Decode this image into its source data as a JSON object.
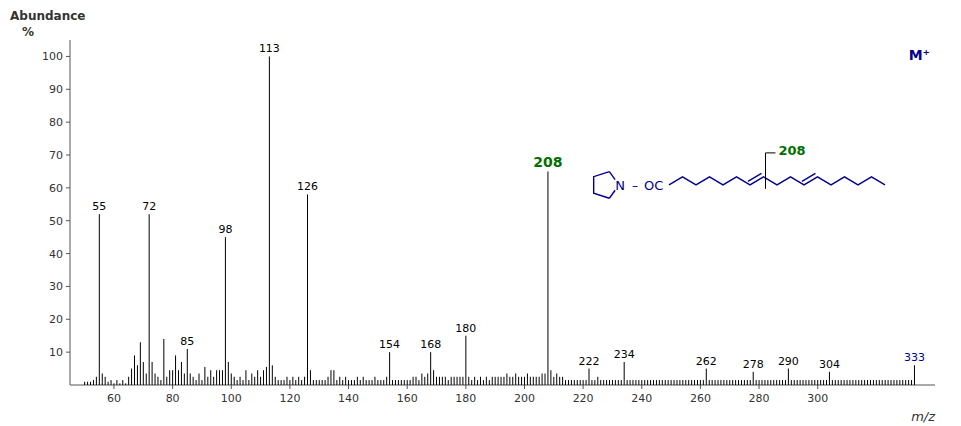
{
  "chart_data": {
    "type": "stem",
    "x_label": "m/z",
    "y_label": "Abundance",
    "xlim": [
      45,
      340
    ],
    "ylim": [
      0,
      105
    ],
    "xticks": [
      60,
      80,
      100,
      120,
      140,
      160,
      180,
      200,
      220,
      240,
      260,
      280,
      300
    ],
    "yticks": [
      10,
      20,
      30,
      40,
      50,
      60,
      70,
      80,
      90,
      100
    ],
    "grid": false,
    "color": "#000000",
    "x": [
      50,
      51,
      52,
      53,
      54,
      55,
      56,
      57,
      58,
      59,
      60,
      61,
      62,
      63,
      64,
      65,
      66,
      67,
      68,
      69,
      70,
      71,
      72,
      73,
      74,
      75,
      76,
      77,
      78,
      79,
      80,
      81,
      82,
      83,
      84,
      85,
      86,
      87,
      88,
      89,
      90,
      91,
      92,
      93,
      94,
      95,
      96,
      97,
      98,
      99,
      100,
      101,
      102,
      103,
      104,
      105,
      106,
      107,
      108,
      109,
      110,
      111,
      112,
      113,
      114,
      115,
      116,
      117,
      118,
      119,
      120,
      121,
      122,
      123,
      124,
      125,
      126,
      127,
      128,
      129,
      130,
      131,
      132,
      133,
      134,
      135,
      136,
      137,
      138,
      139,
      140,
      141,
      142,
      143,
      144,
      145,
      146,
      147,
      148,
      149,
      150,
      151,
      152,
      153,
      154,
      155,
      156,
      157,
      158,
      159,
      160,
      161,
      162,
      163,
      164,
      165,
      166,
      167,
      168,
      169,
      170,
      171,
      172,
      173,
      174,
      175,
      176,
      177,
      178,
      179,
      180,
      181,
      182,
      183,
      184,
      185,
      186,
      187,
      188,
      189,
      190,
      191,
      192,
      193,
      194,
      195,
      196,
      197,
      198,
      199,
      200,
      201,
      202,
      203,
      204,
      205,
      206,
      207,
      208,
      209,
      210,
      211,
      212,
      213,
      214,
      215,
      216,
      217,
      218,
      219,
      220,
      221,
      222,
      223,
      224,
      225,
      226,
      227,
      228,
      229,
      230,
      231,
      232,
      233,
      234,
      235,
      236,
      237,
      238,
      239,
      240,
      241,
      242,
      243,
      244,
      245,
      246,
      247,
      248,
      249,
      250,
      251,
      252,
      253,
      254,
      255,
      256,
      257,
      258,
      259,
      260,
      261,
      262,
      263,
      264,
      265,
      266,
      267,
      268,
      269,
      270,
      271,
      272,
      273,
      274,
      275,
      276,
      277,
      278,
      279,
      280,
      281,
      282,
      283,
      284,
      285,
      286,
      287,
      288,
      289,
      290,
      291,
      292,
      293,
      294,
      295,
      296,
      297,
      298,
      299,
      300,
      301,
      302,
      303,
      304,
      305,
      306,
      307,
      308,
      309,
      310,
      311,
      312,
      313,
      314,
      315,
      316,
      317,
      318,
      319,
      320,
      321,
      322,
      323,
      324,
      325,
      326,
      327,
      328,
      329,
      330,
      331,
      332,
      333
    ],
    "values": [
      1,
      1,
      1,
      1.5,
      2.5,
      52,
      3.5,
      2.5,
      1,
      1.5,
      0.5,
      1.5,
      0.5,
      1.5,
      0.5,
      2.5,
      5,
      9,
      6,
      13,
      7,
      3.5,
      52,
      7,
      3.5,
      2.5,
      1.5,
      14,
      2.5,
      4.5,
      4.5,
      9,
      4.5,
      7,
      3.5,
      11,
      3.5,
      2.5,
      1.5,
      3.5,
      1.5,
      5.5,
      2.5,
      4.5,
      2.5,
      4.5,
      4.5,
      4.5,
      45,
      7,
      3.5,
      2.5,
      1.5,
      2.5,
      1.5,
      4.5,
      1.5,
      3.5,
      2.5,
      4.5,
      2.5,
      4.5,
      5.5,
      100,
      6,
      2.5,
      1.5,
      1.5,
      1.5,
      2.5,
      1.5,
      2.5,
      1.5,
      2.5,
      1.5,
      2.5,
      58,
      4.5,
      1.5,
      1.5,
      1.5,
      1.5,
      1.5,
      2.5,
      4.5,
      4.5,
      1.5,
      2.5,
      1.5,
      2.5,
      1.5,
      1.5,
      1.5,
      2.5,
      1.5,
      2.5,
      1.5,
      1.5,
      1.5,
      2.5,
      1.5,
      1.5,
      1.5,
      2.5,
      10,
      1.5,
      1.5,
      1.5,
      1.5,
      1.5,
      1.5,
      1.5,
      2.5,
      2.5,
      1.5,
      3.5,
      2.5,
      3.5,
      10,
      4.5,
      2.5,
      2.5,
      2.5,
      2.5,
      1.5,
      2.5,
      2.5,
      2.5,
      2.5,
      2.5,
      15,
      2.5,
      1.5,
      2.5,
      1.5,
      2.5,
      1.5,
      2.5,
      1.5,
      2.5,
      2.5,
      2.5,
      2.5,
      2.5,
      3.5,
      2.5,
      2.5,
      3.5,
      2.5,
      2.5,
      2.5,
      3.5,
      2.5,
      2.5,
      2.5,
      2.5,
      3.5,
      3.5,
      65,
      4.5,
      2.5,
      3.5,
      2.5,
      2.5,
      1.5,
      1.5,
      1.5,
      1.5,
      1.5,
      1.5,
      1.5,
      1.5,
      5,
      1.5,
      1.5,
      2.5,
      1.5,
      1.5,
      1.5,
      1.5,
      1.5,
      1.5,
      1.5,
      1.5,
      7,
      1.5,
      1.5,
      1.5,
      1.5,
      1.5,
      1.5,
      1.5,
      1.5,
      1.5,
      1.5,
      1.5,
      1.5,
      1.5,
      1.5,
      1.5,
      1.5,
      1.5,
      1.5,
      1.5,
      1.5,
      1.5,
      1.5,
      1.5,
      1.5,
      1.5,
      1.5,
      1.5,
      5,
      1.5,
      1.5,
      1.5,
      1.5,
      1.5,
      1.5,
      1.5,
      1.5,
      1.5,
      1.5,
      1.5,
      1.5,
      1.5,
      1.5,
      1.5,
      4,
      1.5,
      1.5,
      1.5,
      1.5,
      1.5,
      1.5,
      1.5,
      1.5,
      1.5,
      1.5,
      1.5,
      5,
      1.5,
      1.5,
      1.5,
      1.5,
      1.5,
      1.5,
      1.5,
      1.5,
      1.5,
      1.5,
      1.5,
      1.5,
      1.5,
      4,
      1.5,
      1.5,
      1.5,
      1.5,
      1.5,
      1.5,
      1.5,
      1.5,
      1.5,
      1.5,
      1.5,
      1.5,
      1.5,
      1.5,
      1.5,
      1.5,
      1.5,
      1.5,
      1.5,
      1.5,
      1.5,
      1.5,
      1.5,
      1.5,
      1.5,
      1.5,
      1.5,
      1.5,
      6
    ],
    "annotations": [
      {
        "text": "%"
      },
      {
        "text": "M⁺",
        "color": "#00008B"
      },
      {
        "text": "N",
        "color": "#00008B"
      },
      {
        "text": "–",
        "color": "#00008B"
      },
      {
        "text": "OC",
        "color": "#00008B"
      },
      {
        "text": "208",
        "color": "#007000"
      },
      {
        "text": "55",
        "x": 55,
        "color": "#000000"
      },
      {
        "text": "72",
        "x": 72,
        "color": "#000000"
      },
      {
        "text": "85",
        "x": 85,
        "color": "#000000"
      },
      {
        "text": "98",
        "x": 98,
        "color": "#000000"
      },
      {
        "text": "113",
        "x": 113,
        "color": "#000000"
      },
      {
        "text": "126",
        "x": 126,
        "color": "#000000"
      },
      {
        "text": "154",
        "x": 154,
        "color": "#000000"
      },
      {
        "text": "168",
        "x": 168,
        "color": "#000000"
      },
      {
        "text": "180",
        "x": 180,
        "color": "#000000"
      },
      {
        "text": "208",
        "x": 208,
        "color": "#007000"
      },
      {
        "text": "222",
        "x": 222,
        "color": "#000000"
      },
      {
        "text": "234",
        "x": 234,
        "color": "#000000"
      },
      {
        "text": "262",
        "x": 262,
        "color": "#000000"
      },
      {
        "text": "278",
        "x": 278,
        "color": "#000000"
      },
      {
        "text": "290",
        "x": 290,
        "color": "#000000"
      },
      {
        "text": "304",
        "x": 304,
        "color": "#000000"
      },
      {
        "text": "333",
        "x": 333,
        "color": "#00008B"
      }
    ]
  }
}
